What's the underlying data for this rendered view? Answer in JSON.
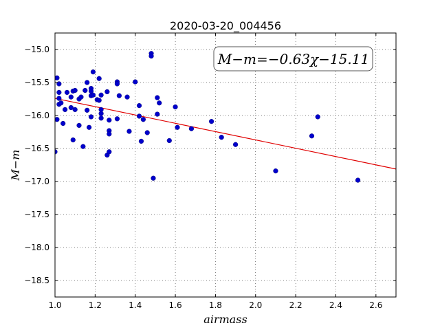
{
  "chart_data": {
    "type": "scatter",
    "title": "2020-03-20_004456",
    "xlabel": "airmass",
    "ylabel": "M−m",
    "xlim": [
      1.0,
      2.7
    ],
    "ylim": [
      -18.75,
      -14.75
    ],
    "y_inverted": true,
    "grid": true,
    "x_ticks": [
      1.0,
      1.2,
      1.4,
      1.6,
      1.8,
      2.0,
      2.2,
      2.4,
      2.6
    ],
    "x_tick_labels": [
      "1.0",
      "1.2",
      "1.4",
      "1.6",
      "1.8",
      "2.0",
      "2.2",
      "2.4",
      "2.6"
    ],
    "y_ticks": [
      -15.0,
      -15.5,
      -16.0,
      -16.5,
      -17.0,
      -17.5,
      -18.0,
      -18.5
    ],
    "y_tick_labels": [
      "−15.0",
      "−15.5",
      "−16.0",
      "−16.5",
      "−17.0",
      "−17.5",
      "−18.0",
      "−18.5"
    ],
    "annotation": "M−m=−0.63χ−15.11",
    "fit": {
      "slope": -0.63,
      "intercept": -15.11,
      "color": "#e00000"
    },
    "point_color": "#0000cc",
    "series": [
      {
        "points": [
          [
            1.0,
            -16.55
          ],
          [
            1.01,
            -16.06
          ],
          [
            1.01,
            -15.43
          ],
          [
            1.02,
            -15.52
          ],
          [
            1.02,
            -15.65
          ],
          [
            1.02,
            -15.74
          ],
          [
            1.02,
            -15.83
          ],
          [
            1.03,
            -15.81
          ],
          [
            1.04,
            -16.12
          ],
          [
            1.05,
            -15.91
          ],
          [
            1.06,
            -15.65
          ],
          [
            1.08,
            -15.72
          ],
          [
            1.08,
            -15.88
          ],
          [
            1.09,
            -15.63
          ],
          [
            1.09,
            -16.37
          ],
          [
            1.1,
            -15.62
          ],
          [
            1.1,
            -15.91
          ],
          [
            1.12,
            -15.75
          ],
          [
            1.12,
            -16.15
          ],
          [
            1.13,
            -15.72
          ],
          [
            1.14,
            -16.47
          ],
          [
            1.15,
            -15.62
          ],
          [
            1.16,
            -15.5
          ],
          [
            1.16,
            -15.92
          ],
          [
            1.17,
            -16.18
          ],
          [
            1.18,
            -15.59
          ],
          [
            1.18,
            -15.63
          ],
          [
            1.18,
            -15.7
          ],
          [
            1.18,
            -16.02
          ],
          [
            1.19,
            -15.34
          ],
          [
            1.19,
            -15.69
          ],
          [
            1.21,
            -15.76
          ],
          [
            1.22,
            -15.44
          ],
          [
            1.22,
            -15.77
          ],
          [
            1.23,
            -15.69
          ],
          [
            1.23,
            -15.91
          ],
          [
            1.23,
            -15.97
          ],
          [
            1.23,
            -16.04
          ],
          [
            1.26,
            -16.6
          ],
          [
            1.26,
            -15.64
          ],
          [
            1.27,
            -16.07
          ],
          [
            1.27,
            -16.23
          ],
          [
            1.27,
            -16.28
          ],
          [
            1.27,
            -16.55
          ],
          [
            1.31,
            -15.49
          ],
          [
            1.31,
            -15.52
          ],
          [
            1.31,
            -16.05
          ],
          [
            1.32,
            -15.7
          ],
          [
            1.36,
            -15.72
          ],
          [
            1.37,
            -16.24
          ],
          [
            1.4,
            -15.49
          ],
          [
            1.42,
            -16.01
          ],
          [
            1.42,
            -15.85
          ],
          [
            1.43,
            -16.39
          ],
          [
            1.44,
            -16.06
          ],
          [
            1.46,
            -16.26
          ],
          [
            1.48,
            -15.06
          ],
          [
            1.48,
            -15.1
          ],
          [
            1.49,
            -16.95
          ],
          [
            1.51,
            -15.73
          ],
          [
            1.51,
            -15.98
          ],
          [
            1.52,
            -15.81
          ],
          [
            1.57,
            -16.38
          ],
          [
            1.6,
            -15.87
          ],
          [
            1.61,
            -16.18
          ],
          [
            1.68,
            -16.2
          ],
          [
            1.78,
            -16.09
          ],
          [
            1.83,
            -16.33
          ],
          [
            1.9,
            -16.44
          ],
          [
            2.1,
            -16.84
          ],
          [
            2.28,
            -16.31
          ],
          [
            2.31,
            -16.02
          ],
          [
            2.51,
            -16.98
          ]
        ]
      }
    ]
  }
}
